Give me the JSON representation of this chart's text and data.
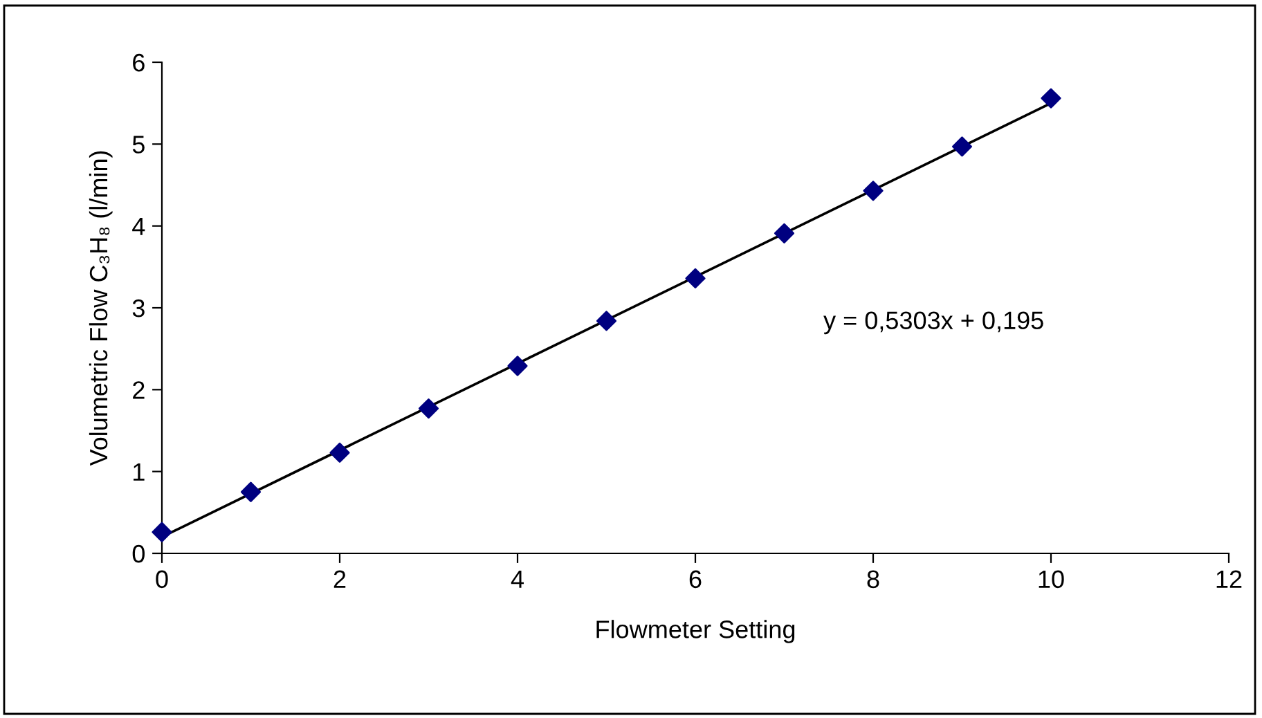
{
  "chart_data": {
    "type": "scatter",
    "xlabel": "Flowmeter Setting",
    "ylabel": "Volumetric Flow C₃H₈ (l/min)",
    "annotations": [
      "y = 0,5303x + 0,195"
    ],
    "x": [
      0,
      1,
      2,
      3,
      4,
      5,
      6,
      7,
      8,
      9,
      10
    ],
    "series": [
      {
        "color": "#000080",
        "marker": "diamond",
        "values": [
          0.26,
          0.75,
          1.23,
          1.77,
          2.29,
          2.84,
          3.36,
          3.91,
          4.43,
          4.97,
          5.56
        ]
      },
      {
        "type": "line",
        "color": "#000000",
        "x": [
          0,
          10
        ],
        "values": [
          0.2,
          5.5
        ]
      }
    ],
    "xlim": [
      0,
      12
    ],
    "xticks": [
      0,
      2,
      4,
      6,
      8,
      10,
      12
    ],
    "ylim": [
      0,
      6
    ],
    "yticks": [
      0,
      1,
      2,
      3,
      4,
      5,
      6
    ],
    "grid": false,
    "legend": false
  }
}
